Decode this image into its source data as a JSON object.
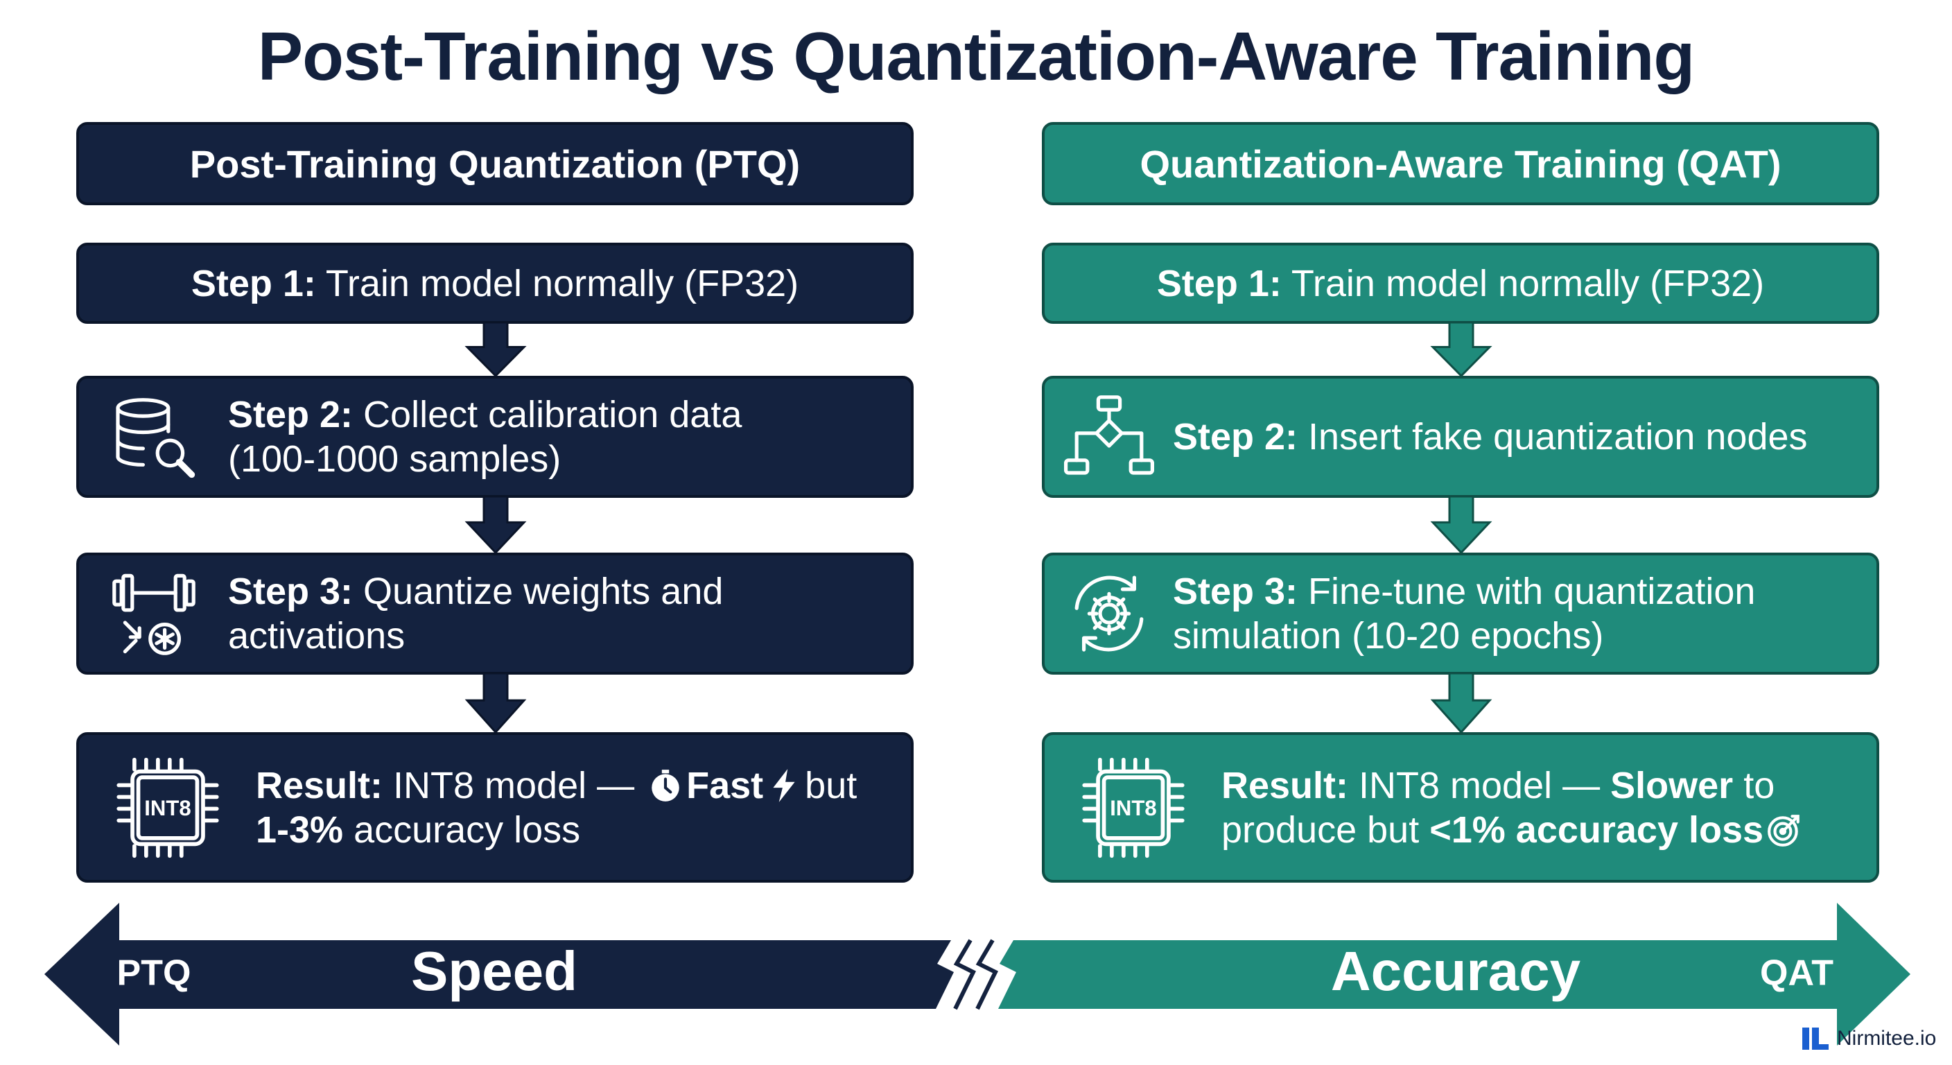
{
  "title": "Post-Training vs Quantization-Aware Training",
  "columns": [
    {
      "header": "Post-Training Quantization (PTQ)",
      "color": "#14223f",
      "steps": [
        {
          "lines": [
            [
              {
                "text": "Step 1:",
                "strong": true
              },
              {
                "text": " Train model normally (FP32)"
              }
            ]
          ]
        },
        {
          "icon": "database",
          "lines": [
            [
              {
                "text": "Step 2:",
                "strong": true
              },
              {
                "text": " Collect calibration data"
              }
            ],
            [
              {
                "text": "(100-1000 samples)"
              }
            ]
          ]
        },
        {
          "icon": "weights",
          "lines": [
            [
              {
                "text": "Step 3:",
                "strong": true
              },
              {
                "text": " Quantize weights and"
              }
            ],
            [
              {
                "text": "activations"
              }
            ]
          ]
        },
        {
          "icon": "chip",
          "chip_label": "INT8",
          "lines": [
            [
              {
                "text": "Result:",
                "strong": true
              },
              {
                "text": " INT8 model — "
              },
              {
                "icon": "stopwatch"
              },
              {
                "text": "Fast",
                "strong": true
              },
              {
                "icon": "bolt"
              },
              {
                "text": "but"
              }
            ],
            [
              {
                "text": "1-3%",
                "strong": true
              },
              {
                "text": " accuracy loss"
              }
            ]
          ]
        }
      ]
    },
    {
      "header": "Quantization-Aware Training (QAT)",
      "color": "#1f8b7b",
      "steps": [
        {
          "lines": [
            [
              {
                "text": "Step 1:",
                "strong": true
              },
              {
                "text": " Train model normally (FP32)"
              }
            ]
          ]
        },
        {
          "icon": "flow",
          "lines": [
            [
              {
                "text": "Step 2:",
                "strong": true
              },
              {
                "text": " Insert fake quantization nodes"
              }
            ]
          ]
        },
        {
          "icon": "cycle",
          "lines": [
            [
              {
                "text": "Step 3:",
                "strong": true
              },
              {
                "text": " Fine-tune with quantization"
              }
            ],
            [
              {
                "text": "simulation (10-20 epochs)"
              }
            ]
          ]
        },
        {
          "icon": "chip",
          "chip_label": "INT8",
          "lines": [
            [
              {
                "text": "Result:",
                "strong": true
              },
              {
                "text": " INT8 model — "
              },
              {
                "text": "Slower",
                "strong": true
              },
              {
                "text": " to"
              }
            ],
            [
              {
                "text": "produce but "
              },
              {
                "text": "<1% accuracy loss",
                "strong": true
              },
              {
                "icon": "target"
              }
            ]
          ]
        }
      ]
    }
  ],
  "scale": {
    "left": "PTQ",
    "left_title": "Speed",
    "right_title": "Accuracy",
    "right": "QAT"
  },
  "logo": "Nirmitee.io"
}
